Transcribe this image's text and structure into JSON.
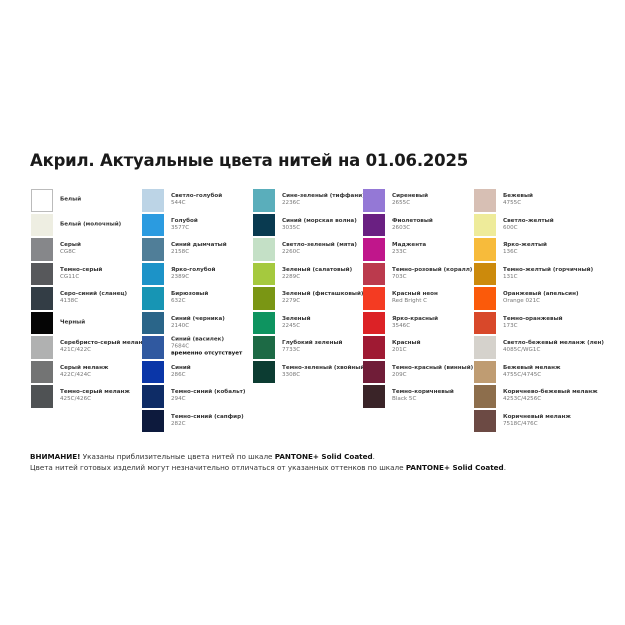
{
  "title": "Акрил. Актуальные цвета нитей на 01.06.2025",
  "columns": [
    [
      {
        "name": "Белый",
        "code": "",
        "color": "#ffffff"
      },
      {
        "name": "Белый (молочный)",
        "code": "",
        "color": "#eeeee2"
      },
      {
        "name": "Серый",
        "code": "CG8C",
        "color": "#86878a"
      },
      {
        "name": "Темно-серый",
        "code": "CG11C",
        "color": "#57585b"
      },
      {
        "name": "Серо-синий (сланец)",
        "code": "4138C",
        "color": "#333d45"
      },
      {
        "name": "Черный",
        "code": "",
        "color": "#050505"
      },
      {
        "name": "Серебристо-серый меланж",
        "code": "421C/422C",
        "color": "#b0b1b1"
      },
      {
        "name": "Серый меланж",
        "code": "422C/424C",
        "color": "#737474"
      },
      {
        "name": "Темно-серый меланж",
        "code": "425C/426C",
        "color": "#4f5254"
      }
    ],
    [
      {
        "name": "Светло-голубой",
        "code": "544C",
        "color": "#bcd4e6"
      },
      {
        "name": "Голубой",
        "code": "3577C",
        "color": "#2b9be0"
      },
      {
        "name": "Синий дымчатый",
        "code": "2158C",
        "color": "#507e98"
      },
      {
        "name": "Ярко-голубой",
        "code": "2389C",
        "color": "#1c93c8"
      },
      {
        "name": "Бирюзовый",
        "code": "632C",
        "color": "#1795b4"
      },
      {
        "name": "Синий (черника)",
        "code": "2140C",
        "color": "#2a6589"
      },
      {
        "name": "Синий (василек)",
        "code": "7684C",
        "color": "#3059a0",
        "note": "временно отсутствует"
      },
      {
        "name": "Синий",
        "code": "286C",
        "color": "#0a36a8"
      },
      {
        "name": "Темно-синий (кобальт)",
        "code": "294C",
        "color": "#0e2c66"
      },
      {
        "name": "Темно-синий (сапфир)",
        "code": "282C",
        "color": "#0d1a3d"
      }
    ],
    [
      {
        "name": "Сине-зеленый (тиффани)",
        "code": "2236C",
        "color": "#5aaebb"
      },
      {
        "name": "Синий (морская волна)",
        "code": "3035C",
        "color": "#093a50"
      },
      {
        "name": "Светло-зеленый (мята)",
        "code": "2260C",
        "color": "#c4e0c6"
      },
      {
        "name": "Зеленый (салатовый)",
        "code": "2289C",
        "color": "#a5c93e"
      },
      {
        "name": "Зеленый (фисташковый)",
        "code": "2279C",
        "color": "#7a9614"
      },
      {
        "name": "Зеленый",
        "code": "2245C",
        "color": "#0e9460"
      },
      {
        "name": "Глубокий зеленый",
        "code": "7733C",
        "color": "#1d6a45"
      },
      {
        "name": "Темно-зеленый (хвойный)",
        "code": "3308C",
        "color": "#0c3c32"
      }
    ],
    [
      {
        "name": "Сиреневый",
        "code": "2655C",
        "color": "#9478d6"
      },
      {
        "name": "Фиолетовый",
        "code": "2603C",
        "color": "#6a2082"
      },
      {
        "name": "Маджента",
        "code": "233C",
        "color": "#c0168b"
      },
      {
        "name": "Темно-розовый (коралл)",
        "code": "703C",
        "color": "#bb3a4d"
      },
      {
        "name": "Красный неон",
        "code": "Red Bright C",
        "color": "#f43b22"
      },
      {
        "name": "Ярко-красный",
        "code": "3546C",
        "color": "#dc2226"
      },
      {
        "name": "Красный",
        "code": "201C",
        "color": "#9f1a33"
      },
      {
        "name": "Темно-красный (винный)",
        "code": "209C",
        "color": "#701d38"
      },
      {
        "name": "Темно-коричневый",
        "code": "Black 5C",
        "color": "#3a2428"
      }
    ],
    [
      {
        "name": "Бежевый",
        "code": "4755C",
        "color": "#d7bfb4"
      },
      {
        "name": "Светло-желтый",
        "code": "600C",
        "color": "#eeeb9a"
      },
      {
        "name": "Ярко-желтый",
        "code": "136C",
        "color": "#f7bb3b"
      },
      {
        "name": "Темно-желтый (горчичный)",
        "code": "131C",
        "color": "#cc8a0c"
      },
      {
        "name": "Оранжевый (апельсин)",
        "code": "Orange 021C",
        "color": "#fb5a0a"
      },
      {
        "name": "Темно-оранжевый",
        "code": "173C",
        "color": "#d8482a"
      },
      {
        "name": "Светло-бежевый меланж (лен)",
        "code": "4085C/WG1C",
        "color": "#d5d2cc"
      },
      {
        "name": "Бежевый меланж",
        "code": "4755C/4745C",
        "color": "#bf9c72"
      },
      {
        "name": "Коричнево-бежевый меланж",
        "code": "4253C/4256C",
        "color": "#8d6e4c"
      },
      {
        "name": "Коричневый меланж",
        "code": "7518C/476C",
        "color": "#6c4a44"
      }
    ]
  ],
  "footer": {
    "warning_label": "ВНИМАНИЕ!",
    "line1": " Указаны приблизительные цвета нитей по шкале ",
    "line2": "Цвета нитей готовых изделий могут незначительно отличаться от указанных оттенков по шкале ",
    "pantone": "PANTONE+ Solid Coated",
    "dot": "."
  }
}
